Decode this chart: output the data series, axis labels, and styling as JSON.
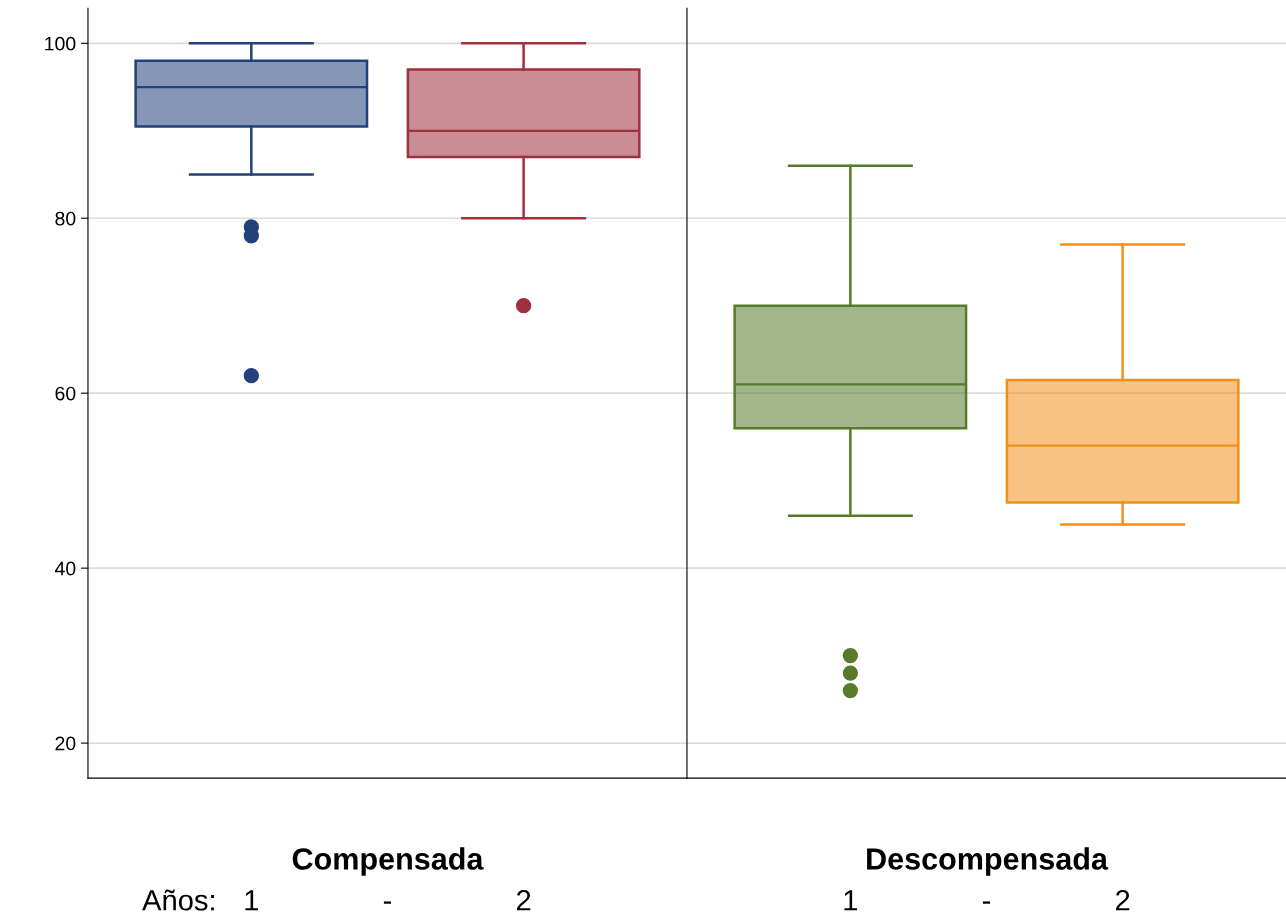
{
  "chart_data": [
    {
      "type": "box",
      "categories": [
        "1",
        "2"
      ],
      "xlabel": "Compensada",
      "annotations": [
        "Años:",
        "-"
      ],
      "colors": [
        "#23417a",
        "#a0303e"
      ],
      "ylim": [
        16,
        104
      ],
      "yticks": [
        20,
        40,
        60,
        80,
        100
      ],
      "grid": "y",
      "boxes": [
        {
          "low": 85,
          "q1": 90.5,
          "median": 95,
          "q3": 98,
          "high": 100,
          "outliers": [
            79,
            78,
            62
          ]
        },
        {
          "low": 80,
          "q1": 87,
          "median": 90,
          "q3": 97,
          "high": 100,
          "outliers": [
            70
          ]
        }
      ]
    },
    {
      "type": "box",
      "categories": [
        "1",
        "2"
      ],
      "xlabel": "Descompensada",
      "annotations": [
        "-"
      ],
      "colors": [
        "#587a2b",
        "#f0901b"
      ],
      "ylim": [
        16,
        104
      ],
      "yticks": [
        20,
        40,
        60,
        80,
        100
      ],
      "grid": "y",
      "tick_labels": "x",
      "boxes": [
        {
          "low": 46,
          "q1": 56,
          "median": 61,
          "q3": 70,
          "high": 86,
          "outliers": [
            30,
            28,
            26
          ]
        },
        {
          "low": 45,
          "q1": 47.5,
          "median": 54,
          "q3": 61.5,
          "high": 77
        }
      ]
    }
  ]
}
